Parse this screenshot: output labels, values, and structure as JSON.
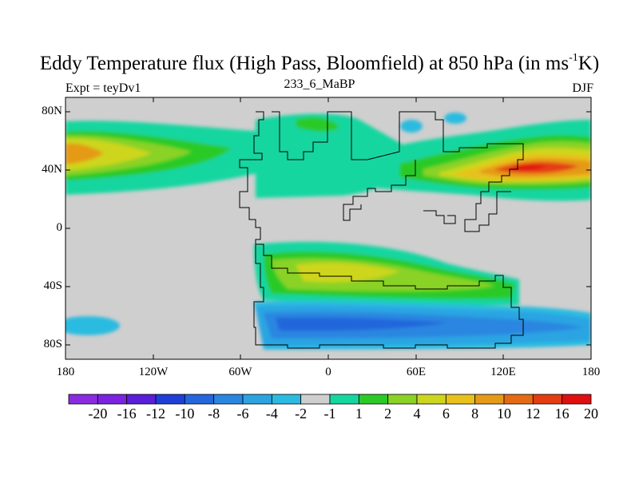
{
  "title": {
    "main": "Eddy Temperature flux (High Pass, Bloomfield) at 850 hPa (in ms",
    "sup": "-1",
    "end": "K)"
  },
  "subtitle_left": "Expt = teyDv1",
  "subtitle_center": "233_6_MaBP",
  "subtitle_right": "DJF",
  "lat_labels": [
    "80N",
    "40N",
    "0",
    "40S",
    "80S"
  ],
  "lon_labels": [
    "180",
    "120W",
    "60W",
    "0",
    "60E",
    "120E",
    "180"
  ],
  "colorbar": {
    "labels": [
      "-20",
      "-16",
      "-12",
      "-10",
      "-8",
      "-6",
      "-4",
      "-2",
      "-1",
      "1",
      "2",
      "4",
      "6",
      "8",
      "10",
      "12",
      "16",
      "20"
    ],
    "colors": [
      "#8a2be2",
      "#7b23e0",
      "#5a1fd8",
      "#1f3fd8",
      "#2466dc",
      "#2a86e0",
      "#2ca4e2",
      "#2bbbe0",
      "#cfcfcf",
      "#16d6a0",
      "#2cca28",
      "#8ad226",
      "#cdd61e",
      "#e8c11c",
      "#e59a18",
      "#e56a14",
      "#e53c12",
      "#e10f10"
    ]
  },
  "colors": {
    "background": "#cfcfcf",
    "coast": "#000000"
  }
}
